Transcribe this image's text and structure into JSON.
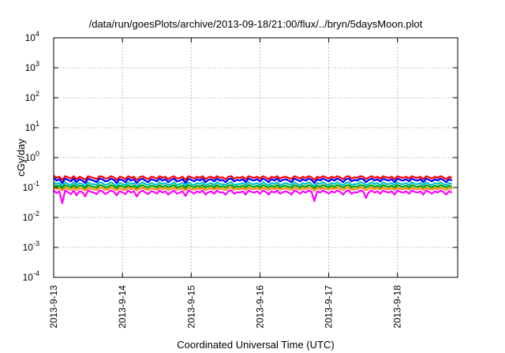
{
  "chart_data": {
    "type": "line",
    "title": "/data/run/goesPlots/archive/2013-09-18/21:00/flux/../bryn/5daysMoon.plot",
    "xlabel": "Coordinated Universal Time (UTC)",
    "ylabel": "cGy/day",
    "y_scale": "log",
    "ylim_exp": [
      -4,
      4
    ],
    "xlim": [
      "2013-09-13 00:00",
      "2013-09-18 21:00"
    ],
    "x_ticks": [
      "2013-9-13",
      "2013-9-14",
      "2013-9-15",
      "2013-9-16",
      "2013-9-17",
      "2013-9-18"
    ],
    "y_tick_base": "10",
    "y_tick_exponents": [
      "-4",
      "-3",
      "-2",
      "-1",
      "0",
      "1",
      "2",
      "3",
      "4"
    ],
    "grid": true,
    "legend": "none",
    "sample_step_hours": 1,
    "series": [
      {
        "color": "#ff0000",
        "values": [
          0.25,
          0.21,
          0.23,
          0.18,
          0.24,
          0.22,
          0.2,
          0.24,
          0.19,
          0.23,
          0.21,
          0.18,
          0.24,
          0.22,
          0.21,
          0.19,
          0.24,
          0.23,
          0.2,
          0.21,
          0.24,
          0.22,
          0.18,
          0.23,
          0.22,
          0.19,
          0.24,
          0.21,
          0.23,
          0.18,
          0.22,
          0.24,
          0.21,
          0.19,
          0.23,
          0.22,
          0.2,
          0.24,
          0.21,
          0.23,
          0.19,
          0.22,
          0.24,
          0.2,
          0.21,
          0.23,
          0.18,
          0.24,
          0.22,
          0.2,
          0.23,
          0.21,
          0.24,
          0.19,
          0.22,
          0.23,
          0.2,
          0.24,
          0.21,
          0.22,
          0.19,
          0.23,
          0.24,
          0.2,
          0.22,
          0.21,
          0.23,
          0.19,
          0.24,
          0.22,
          0.21,
          0.23,
          0.2,
          0.24,
          0.22,
          0.19,
          0.23,
          0.21,
          0.24,
          0.2,
          0.22,
          0.23,
          0.21,
          0.19,
          0.24,
          0.22,
          0.2,
          0.23,
          0.21,
          0.24,
          0.22,
          0.18,
          0.23,
          0.21,
          0.24,
          0.22,
          0.2,
          0.23,
          0.21,
          0.24,
          0.22,
          0.19,
          0.23,
          0.24,
          0.2,
          0.22,
          0.21,
          0.24,
          0.23,
          0.19,
          0.22,
          0.24,
          0.21,
          0.23,
          0.2,
          0.24,
          0.22,
          0.21,
          0.23,
          0.19,
          0.24,
          0.22,
          0.21,
          0.23,
          0.2,
          0.24,
          0.22,
          0.21,
          0.23,
          0.19,
          0.24,
          0.22,
          0.2,
          0.23,
          0.21,
          0.24,
          0.22,
          0.19,
          0.23,
          0.21
        ]
      },
      {
        "color": "#0000ff",
        "values": [
          0.21,
          0.17,
          0.19,
          0.14,
          0.2,
          0.18,
          0.16,
          0.2,
          0.15,
          0.19,
          0.17,
          0.14,
          0.2,
          0.18,
          0.17,
          0.15,
          0.2,
          0.19,
          0.16,
          0.17,
          0.2,
          0.18,
          0.14,
          0.19,
          0.18,
          0.15,
          0.2,
          0.17,
          0.19,
          0.14,
          0.18,
          0.2,
          0.17,
          0.15,
          0.19,
          0.18,
          0.16,
          0.2,
          0.17,
          0.19,
          0.15,
          0.18,
          0.2,
          0.16,
          0.17,
          0.19,
          0.14,
          0.2,
          0.18,
          0.16,
          0.19,
          0.17,
          0.2,
          0.15,
          0.18,
          0.19,
          0.16,
          0.2,
          0.17,
          0.18,
          0.15,
          0.19,
          0.2,
          0.16,
          0.18,
          0.17,
          0.19,
          0.15,
          0.2,
          0.18,
          0.17,
          0.19,
          0.16,
          0.2,
          0.18,
          0.15,
          0.19,
          0.17,
          0.2,
          0.16,
          0.18,
          0.19,
          0.17,
          0.15,
          0.2,
          0.18,
          0.16,
          0.19,
          0.17,
          0.2,
          0.18,
          0.14,
          0.19,
          0.17,
          0.2,
          0.18,
          0.16,
          0.19,
          0.17,
          0.2,
          0.18,
          0.15,
          0.19,
          0.2,
          0.16,
          0.18,
          0.17,
          0.2,
          0.19,
          0.15,
          0.18,
          0.2,
          0.17,
          0.19,
          0.16,
          0.2,
          0.18,
          0.17,
          0.19,
          0.15,
          0.2,
          0.18,
          0.17,
          0.19,
          0.16,
          0.2,
          0.18,
          0.17,
          0.19,
          0.15,
          0.2,
          0.18,
          0.16,
          0.19,
          0.17,
          0.2,
          0.18,
          0.15,
          0.19,
          0.17
        ]
      },
      {
        "color": "#00c0c0",
        "values": [
          0.15,
          0.13,
          0.14,
          0.11,
          0.15,
          0.13,
          0.12,
          0.15,
          0.12,
          0.14,
          0.13,
          0.11,
          0.15,
          0.13,
          0.13,
          0.12,
          0.15,
          0.14,
          0.12,
          0.13,
          0.15,
          0.13,
          0.11,
          0.14,
          0.13,
          0.12,
          0.15,
          0.13,
          0.14,
          0.11,
          0.13,
          0.15,
          0.13,
          0.12,
          0.14,
          0.13,
          0.12,
          0.15,
          0.13,
          0.14,
          0.12,
          0.13,
          0.15,
          0.12,
          0.13,
          0.14,
          0.11,
          0.15,
          0.13,
          0.12,
          0.14,
          0.13,
          0.15,
          0.12,
          0.13,
          0.14,
          0.12,
          0.15,
          0.13,
          0.13,
          0.12,
          0.14,
          0.15,
          0.12,
          0.13,
          0.13,
          0.14,
          0.12,
          0.15,
          0.13,
          0.13,
          0.14,
          0.12,
          0.15,
          0.13,
          0.12,
          0.14,
          0.13,
          0.15,
          0.12,
          0.13,
          0.14,
          0.13,
          0.12,
          0.15,
          0.13,
          0.12,
          0.14,
          0.13,
          0.15,
          0.13,
          0.11,
          0.14,
          0.13,
          0.15,
          0.13,
          0.12,
          0.14,
          0.13,
          0.15,
          0.13,
          0.12,
          0.14,
          0.15,
          0.12,
          0.13,
          0.13,
          0.15,
          0.14,
          0.12,
          0.13,
          0.15,
          0.13,
          0.14,
          0.12,
          0.15,
          0.13,
          0.13,
          0.14,
          0.12,
          0.15,
          0.13,
          0.13,
          0.14,
          0.12,
          0.15,
          0.13,
          0.13,
          0.14,
          0.12,
          0.15,
          0.13,
          0.12,
          0.14,
          0.13,
          0.15,
          0.13,
          0.12,
          0.14,
          0.13
        ]
      },
      {
        "color": "#00a000",
        "values": [
          0.12,
          0.11,
          0.115,
          0.095,
          0.12,
          0.11,
          0.1,
          0.12,
          0.1,
          0.115,
          0.11,
          0.095,
          0.12,
          0.11,
          0.105,
          0.1,
          0.12,
          0.115,
          0.1,
          0.105,
          0.12,
          0.11,
          0.095,
          0.115,
          0.11,
          0.1,
          0.12,
          0.105,
          0.115,
          0.095,
          0.11,
          0.12,
          0.105,
          0.1,
          0.115,
          0.11,
          0.1,
          0.12,
          0.105,
          0.115,
          0.1,
          0.11,
          0.12,
          0.1,
          0.105,
          0.115,
          0.095,
          0.12,
          0.11,
          0.1,
          0.115,
          0.105,
          0.12,
          0.1,
          0.11,
          0.115,
          0.1,
          0.12,
          0.105,
          0.11,
          0.1,
          0.115,
          0.12,
          0.1,
          0.11,
          0.105,
          0.115,
          0.1,
          0.12,
          0.11,
          0.105,
          0.115,
          0.1,
          0.12,
          0.11,
          0.1,
          0.115,
          0.105,
          0.12,
          0.1,
          0.11,
          0.115,
          0.105,
          0.1,
          0.12,
          0.11,
          0.1,
          0.115,
          0.105,
          0.12,
          0.11,
          0.095,
          0.115,
          0.105,
          0.12,
          0.11,
          0.1,
          0.115,
          0.105,
          0.12,
          0.11,
          0.1,
          0.115,
          0.12,
          0.1,
          0.11,
          0.105,
          0.12,
          0.115,
          0.1,
          0.11,
          0.12,
          0.105,
          0.115,
          0.1,
          0.12,
          0.11,
          0.105,
          0.115,
          0.1,
          0.12,
          0.11,
          0.105,
          0.115,
          0.1,
          0.12,
          0.11,
          0.105,
          0.115,
          0.1,
          0.12,
          0.11,
          0.1,
          0.115,
          0.105,
          0.12,
          0.11,
          0.1,
          0.115,
          0.105
        ]
      },
      {
        "color": "#ff8c00",
        "values": [
          0.1,
          0.09,
          0.095,
          0.08,
          0.1,
          0.09,
          0.085,
          0.1,
          0.083,
          0.095,
          0.09,
          0.08,
          0.1,
          0.09,
          0.088,
          0.083,
          0.1,
          0.095,
          0.085,
          0.088,
          0.1,
          0.09,
          0.08,
          0.095,
          0.09,
          0.083,
          0.1,
          0.088,
          0.095,
          0.08,
          0.09,
          0.1,
          0.088,
          0.083,
          0.095,
          0.09,
          0.085,
          0.1,
          0.088,
          0.095,
          0.083,
          0.09,
          0.1,
          0.085,
          0.088,
          0.095,
          0.08,
          0.1,
          0.09,
          0.085,
          0.095,
          0.088,
          0.1,
          0.083,
          0.09,
          0.095,
          0.085,
          0.1,
          0.088,
          0.09,
          0.083,
          0.095,
          0.1,
          0.085,
          0.09,
          0.088,
          0.095,
          0.083,
          0.1,
          0.09,
          0.088,
          0.095,
          0.085,
          0.1,
          0.09,
          0.083,
          0.095,
          0.088,
          0.1,
          0.085,
          0.09,
          0.095,
          0.088,
          0.083,
          0.1,
          0.09,
          0.085,
          0.095,
          0.088,
          0.1,
          0.09,
          0.08,
          0.095,
          0.088,
          0.1,
          0.09,
          0.085,
          0.095,
          0.088,
          0.1,
          0.09,
          0.083,
          0.095,
          0.1,
          0.085,
          0.09,
          0.088,
          0.1,
          0.095,
          0.083,
          0.09,
          0.1,
          0.088,
          0.095,
          0.085,
          0.1,
          0.09,
          0.088,
          0.095,
          0.083,
          0.1,
          0.09,
          0.088,
          0.095,
          0.085,
          0.1,
          0.09,
          0.088,
          0.095,
          0.083,
          0.1,
          0.09,
          0.085,
          0.095,
          0.088,
          0.1,
          0.09,
          0.083,
          0.095,
          0.088
        ]
      },
      {
        "color": "#ff00ff",
        "values": [
          0.08,
          0.065,
          0.075,
          0.03,
          0.08,
          0.07,
          0.06,
          0.08,
          0.055,
          0.075,
          0.07,
          0.05,
          0.08,
          0.072,
          0.068,
          0.06,
          0.08,
          0.075,
          0.06,
          0.07,
          0.08,
          0.072,
          0.055,
          0.075,
          0.07,
          0.06,
          0.08,
          0.068,
          0.075,
          0.05,
          0.07,
          0.08,
          0.068,
          0.06,
          0.075,
          0.072,
          0.062,
          0.08,
          0.068,
          0.075,
          0.058,
          0.07,
          0.08,
          0.062,
          0.068,
          0.075,
          0.052,
          0.08,
          0.072,
          0.062,
          0.075,
          0.068,
          0.08,
          0.058,
          0.07,
          0.075,
          0.062,
          0.08,
          0.068,
          0.07,
          0.058,
          0.075,
          0.08,
          0.062,
          0.07,
          0.068,
          0.075,
          0.058,
          0.08,
          0.072,
          0.068,
          0.075,
          0.062,
          0.08,
          0.072,
          0.058,
          0.075,
          0.068,
          0.08,
          0.062,
          0.07,
          0.075,
          0.068,
          0.058,
          0.08,
          0.072,
          0.062,
          0.075,
          0.068,
          0.08,
          0.072,
          0.035,
          0.075,
          0.068,
          0.08,
          0.072,
          0.062,
          0.075,
          0.068,
          0.08,
          0.072,
          0.058,
          0.075,
          0.08,
          0.062,
          0.07,
          0.068,
          0.08,
          0.075,
          0.045,
          0.07,
          0.08,
          0.068,
          0.075,
          0.062,
          0.08,
          0.072,
          0.068,
          0.075,
          0.058,
          0.08,
          0.072,
          0.068,
          0.075,
          0.062,
          0.08,
          0.072,
          0.068,
          0.075,
          0.058,
          0.08,
          0.072,
          0.062,
          0.075,
          0.068,
          0.08,
          0.072,
          0.058,
          0.075,
          0.068
        ]
      }
    ]
  }
}
